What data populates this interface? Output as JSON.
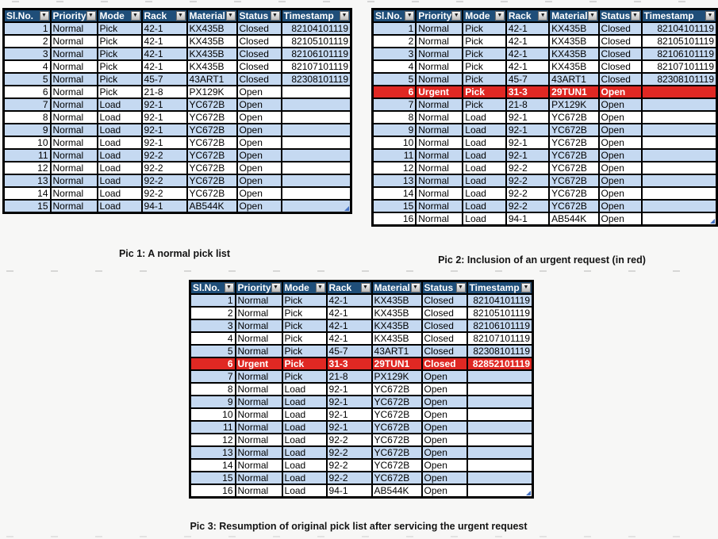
{
  "colors": {
    "header_bg": "#1F4E79",
    "header_text": "#FFFFFF",
    "row_blue": "#C5D9F1",
    "row_white": "#FFFFFF",
    "urgent_bg": "#E02823",
    "urgent_text": "#FFFFFF",
    "border": "#000000",
    "handle_blue": "#4472C4"
  },
  "icons": {
    "filter_dropdown_glyph": "▼"
  },
  "columns": [
    "Sl.No.",
    "Priority",
    "Mode",
    "Rack",
    "Material",
    "Status",
    "Timestamp"
  ],
  "tables": [
    {
      "caption": "Pic 1: A normal pick list",
      "urgent_rows": [],
      "rows": [
        [
          "1",
          "Normal",
          "Pick",
          "42-1",
          "KX435B",
          "Closed",
          "82104101119"
        ],
        [
          "2",
          "Normal",
          "Pick",
          "42-1",
          "KX435B",
          "Closed",
          "82105101119"
        ],
        [
          "3",
          "Normal",
          "Pick",
          "42-1",
          "KX435B",
          "Closed",
          "82106101119"
        ],
        [
          "4",
          "Normal",
          "Pick",
          "42-1",
          "KX435B",
          "Closed",
          "82107101119"
        ],
        [
          "5",
          "Normal",
          "Pick",
          "45-7",
          "43ART1",
          "Closed",
          "82308101119"
        ],
        [
          "6",
          "Normal",
          "Pick",
          "21-8",
          "PX129K",
          "Open",
          ""
        ],
        [
          "7",
          "Normal",
          "Load",
          "92-1",
          "YC672B",
          "Open",
          ""
        ],
        [
          "8",
          "Normal",
          "Load",
          "92-1",
          "YC672B",
          "Open",
          ""
        ],
        [
          "9",
          "Normal",
          "Load",
          "92-1",
          "YC672B",
          "Open",
          ""
        ],
        [
          "10",
          "Normal",
          "Load",
          "92-1",
          "YC672B",
          "Open",
          ""
        ],
        [
          "11",
          "Normal",
          "Load",
          "92-2",
          "YC672B",
          "Open",
          ""
        ],
        [
          "12",
          "Normal",
          "Load",
          "92-2",
          "YC672B",
          "Open",
          ""
        ],
        [
          "13",
          "Normal",
          "Load",
          "92-2",
          "YC672B",
          "Open",
          ""
        ],
        [
          "14",
          "Normal",
          "Load",
          "92-2",
          "YC672B",
          "Open",
          ""
        ],
        [
          "15",
          "Normal",
          "Load",
          "94-1",
          "AB544K",
          "Open",
          ""
        ]
      ]
    },
    {
      "caption": "Pic 2: Inclusion of an urgent request (in red)",
      "urgent_rows": [
        5
      ],
      "rows": [
        [
          "1",
          "Normal",
          "Pick",
          "42-1",
          "KX435B",
          "Closed",
          "82104101119"
        ],
        [
          "2",
          "Normal",
          "Pick",
          "42-1",
          "KX435B",
          "Closed",
          "82105101119"
        ],
        [
          "3",
          "Normal",
          "Pick",
          "42-1",
          "KX435B",
          "Closed",
          "82106101119"
        ],
        [
          "4",
          "Normal",
          "Pick",
          "42-1",
          "KX435B",
          "Closed",
          "82107101119"
        ],
        [
          "5",
          "Normal",
          "Pick",
          "45-7",
          "43ART1",
          "Closed",
          "82308101119"
        ],
        [
          "6",
          "Urgent",
          "Pick",
          "31-3",
          "29TUN1",
          "Open",
          ""
        ],
        [
          "7",
          "Normal",
          "Pick",
          "21-8",
          "PX129K",
          "Open",
          ""
        ],
        [
          "8",
          "Normal",
          "Load",
          "92-1",
          "YC672B",
          "Open",
          ""
        ],
        [
          "9",
          "Normal",
          "Load",
          "92-1",
          "YC672B",
          "Open",
          ""
        ],
        [
          "10",
          "Normal",
          "Load",
          "92-1",
          "YC672B",
          "Open",
          ""
        ],
        [
          "11",
          "Normal",
          "Load",
          "92-1",
          "YC672B",
          "Open",
          ""
        ],
        [
          "12",
          "Normal",
          "Load",
          "92-2",
          "YC672B",
          "Open",
          ""
        ],
        [
          "13",
          "Normal",
          "Load",
          "92-2",
          "YC672B",
          "Open",
          ""
        ],
        [
          "14",
          "Normal",
          "Load",
          "92-2",
          "YC672B",
          "Open",
          ""
        ],
        [
          "15",
          "Normal",
          "Load",
          "92-2",
          "YC672B",
          "Open",
          ""
        ],
        [
          "16",
          "Normal",
          "Load",
          "94-1",
          "AB544K",
          "Open",
          ""
        ]
      ]
    },
    {
      "caption": "Pic 3: Resumption of original pick list  after servicing the urgent request",
      "urgent_rows": [
        5
      ],
      "rows": [
        [
          "1",
          "Normal",
          "Pick",
          "42-1",
          "KX435B",
          "Closed",
          "82104101119"
        ],
        [
          "2",
          "Normal",
          "Pick",
          "42-1",
          "KX435B",
          "Closed",
          "82105101119"
        ],
        [
          "3",
          "Normal",
          "Pick",
          "42-1",
          "KX435B",
          "Closed",
          "82106101119"
        ],
        [
          "4",
          "Normal",
          "Pick",
          "42-1",
          "KX435B",
          "Closed",
          "82107101119"
        ],
        [
          "5",
          "Normal",
          "Pick",
          "45-7",
          "43ART1",
          "Closed",
          "82308101119"
        ],
        [
          "6",
          "Urgent",
          "Pick",
          "31-3",
          "29TUN1",
          "Closed",
          "82852101119"
        ],
        [
          "7",
          "Normal",
          "Pick",
          "21-8",
          "PX129K",
          "Open",
          ""
        ],
        [
          "8",
          "Normal",
          "Load",
          "92-1",
          "YC672B",
          "Open",
          ""
        ],
        [
          "9",
          "Normal",
          "Load",
          "92-1",
          "YC672B",
          "Open",
          ""
        ],
        [
          "10",
          "Normal",
          "Load",
          "92-1",
          "YC672B",
          "Open",
          ""
        ],
        [
          "11",
          "Normal",
          "Load",
          "92-1",
          "YC672B",
          "Open",
          ""
        ],
        [
          "12",
          "Normal",
          "Load",
          "92-2",
          "YC672B",
          "Open",
          ""
        ],
        [
          "13",
          "Normal",
          "Load",
          "92-2",
          "YC672B",
          "Open",
          ""
        ],
        [
          "14",
          "Normal",
          "Load",
          "92-2",
          "YC672B",
          "Open",
          ""
        ],
        [
          "15",
          "Normal",
          "Load",
          "92-2",
          "YC672B",
          "Open",
          ""
        ],
        [
          "16",
          "Normal",
          "Load",
          "94-1",
          "AB544K",
          "Open",
          ""
        ]
      ]
    }
  ]
}
